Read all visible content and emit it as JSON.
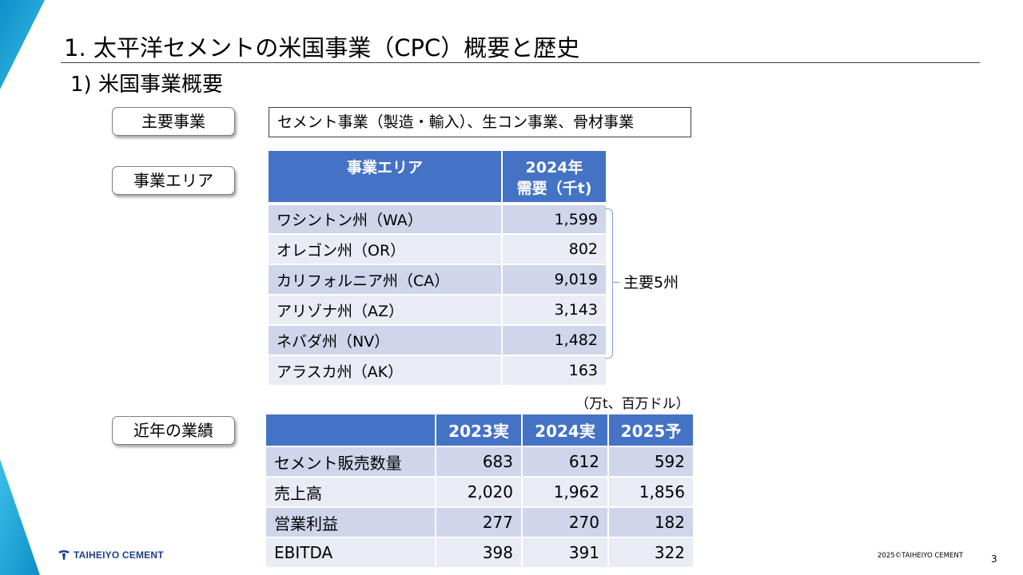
{
  "header": {
    "title": "1. 太平洋セメントの米国事業（CPC）概要と歴史",
    "subtitle": "1) 米国事業概要"
  },
  "business": {
    "label": "主要事業",
    "value": "セメント事業（製造・輸入）、生コン事業、骨材事業"
  },
  "area": {
    "label": "事業エリア",
    "col_area": "事業エリア",
    "col_demand_line1": "2024年",
    "col_demand_line2": "需要（千t)",
    "rows": [
      {
        "name": "ワシントン州（WA）",
        "value": "1,599"
      },
      {
        "name": "オレゴン州（OR）",
        "value": "802"
      },
      {
        "name": "カリフォルニア州（CA）",
        "value": "9,019"
      },
      {
        "name": "アリゾナ州（AZ）",
        "value": "3,143"
      },
      {
        "name": "ネバダ州（NV）",
        "value": "1,482"
      },
      {
        "name": "アラスカ州（AK）",
        "value": "163"
      }
    ],
    "bracket_label": "主要5州"
  },
  "performance": {
    "label": "近年の業績",
    "unit_note": "（万t、百万ドル）",
    "columns": [
      "",
      "2023実",
      "2024実",
      "2025予"
    ],
    "rows": [
      {
        "name": "セメント販売数量",
        "values": [
          "683",
          "612",
          "592"
        ]
      },
      {
        "name": "売上高",
        "values": [
          "2,020",
          "1,962",
          "1,856"
        ]
      },
      {
        "name": "営業利益",
        "values": [
          "277",
          "270",
          "182"
        ]
      },
      {
        "name": "EBITDA",
        "values": [
          "398",
          "391",
          "322"
        ]
      }
    ]
  },
  "footer": {
    "logo_text": "TAIHEIYO CEMENT",
    "copyright": "2025©TAIHEIYO CEMENT",
    "page_number": "3"
  },
  "colors": {
    "header_blue": "#4472c4",
    "row_dark": "#cfd5ea",
    "row_light": "#e9ebf5",
    "accent_corner": "#1fa3d8"
  }
}
